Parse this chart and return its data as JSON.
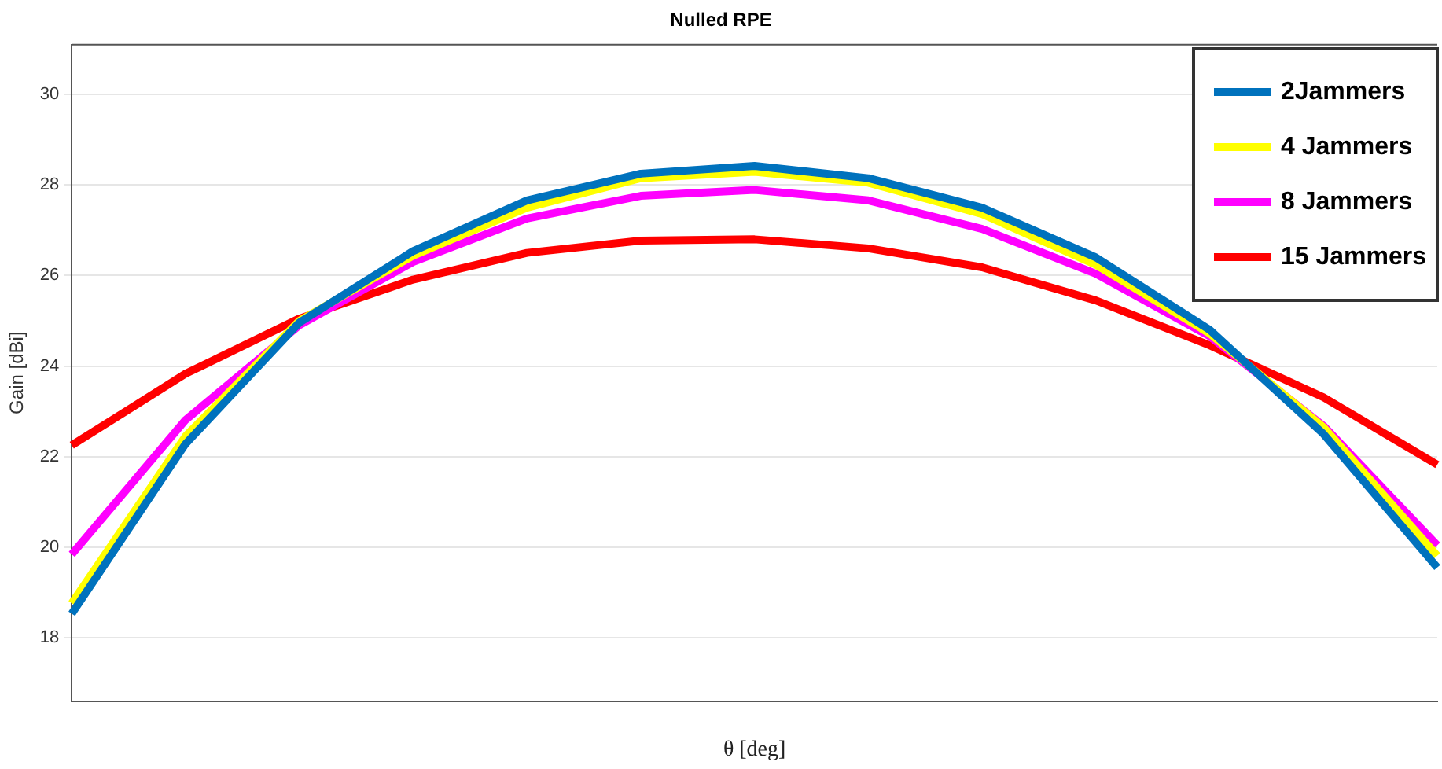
{
  "chart_data": {
    "type": "line",
    "title": "Nulled RPE",
    "xlabel": "θ [deg]",
    "ylabel": "Gain [dBi]",
    "categories": [
      null,
      null,
      null,
      null,
      null,
      null,
      null,
      null,
      null,
      null,
      null,
      null,
      null
    ],
    "ylim": [
      16.6,
      31.1
    ],
    "yticks": [
      18,
      20,
      22,
      24,
      26,
      28,
      30
    ],
    "grid": "y",
    "legend": "top right",
    "marker": "none",
    "line_style": "solid",
    "series": [
      {
        "name": "2Jammers",
        "color": "#0072bd",
        "values": [
          18.53,
          22.28,
          24.96,
          26.54,
          27.66,
          28.25,
          28.42,
          28.15,
          27.5,
          26.4,
          24.8,
          22.5,
          19.55
        ]
      },
      {
        "name": "4 Jammers",
        "color": "#ffff00",
        "values": [
          18.76,
          22.45,
          25.0,
          26.44,
          27.5,
          28.15,
          28.29,
          28.05,
          27.36,
          26.24,
          24.72,
          22.65,
          19.81
        ]
      },
      {
        "name": "8 Jammers",
        "color": "#ff00ff",
        "values": [
          19.84,
          22.81,
          24.9,
          26.3,
          27.26,
          27.76,
          27.89,
          27.66,
          27.03,
          26.04,
          24.66,
          22.68,
          20.04
        ]
      },
      {
        "name": "15 Jammers",
        "color": "#ff0000",
        "values": [
          22.25,
          23.83,
          25.05,
          25.91,
          26.5,
          26.77,
          26.8,
          26.6,
          26.18,
          25.45,
          24.46,
          23.31,
          21.82
        ]
      }
    ]
  }
}
